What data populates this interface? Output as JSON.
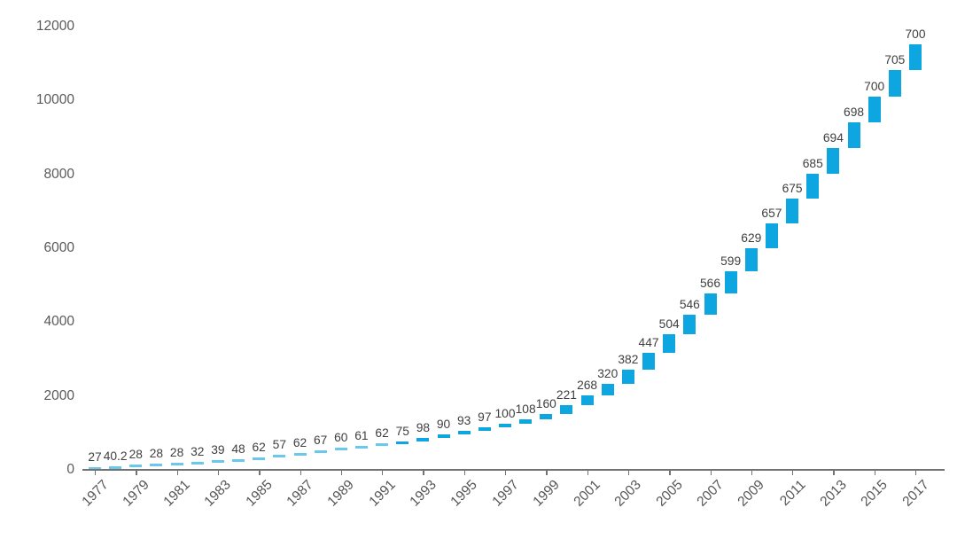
{
  "chart_data": {
    "type": "bar",
    "variant": "waterfall-cumulative",
    "title": "",
    "categories": [
      1977,
      1978,
      1979,
      1980,
      1981,
      1982,
      1983,
      1984,
      1985,
      1986,
      1987,
      1988,
      1989,
      1990,
      1991,
      1992,
      1993,
      1994,
      1995,
      1996,
      1997,
      1998,
      1999,
      2000,
      2001,
      2002,
      2003,
      2004,
      2005,
      2006,
      2007,
      2008,
      2009,
      2010,
      2011,
      2012,
      2013,
      2014,
      2015,
      2016,
      2017
    ],
    "values": [
      27,
      40.2,
      28,
      28,
      28,
      32,
      39,
      48,
      62,
      57,
      62,
      67,
      60,
      61,
      62,
      75,
      98,
      90,
      93,
      97,
      100,
      108,
      160,
      221,
      268,
      320,
      382,
      447,
      504,
      546,
      566,
      599,
      629,
      657,
      675,
      685,
      694,
      698,
      700,
      705,
      700
    ],
    "bar_labels": [
      "27",
      "40.2",
      "28",
      "28",
      "28",
      "32",
      "39",
      "48",
      "62",
      "57",
      "62",
      "67",
      "60",
      "61",
      "62",
      "75",
      "98",
      "90",
      "93",
      "97",
      "100",
      "108",
      "160",
      "221",
      "268",
      "320",
      "382",
      "447",
      "504",
      "546",
      "566",
      "599",
      "629",
      "657",
      "675",
      "685",
      "694",
      "698",
      "700",
      "705",
      "700"
    ],
    "x_tick_labels": [
      "1977",
      "1979",
      "1981",
      "1983",
      "1985",
      "1987",
      "1989",
      "1991",
      "1993",
      "1995",
      "1997",
      "1999",
      "2001",
      "2003",
      "2005",
      "2007",
      "2009",
      "2011",
      "2013",
      "2015",
      "2017"
    ],
    "y_tick_labels": [
      "0",
      "2000",
      "4000",
      "6000",
      "8000",
      "10000",
      "12000"
    ],
    "ylim": [
      0,
      12000
    ],
    "y_tick_step": 2000,
    "grid": "off",
    "legend": "none",
    "bar_color": "#0da6e0",
    "value_label_color": "#3f3f3f",
    "axis_text_color": "#595959",
    "axis_line_color": "#737373"
  }
}
